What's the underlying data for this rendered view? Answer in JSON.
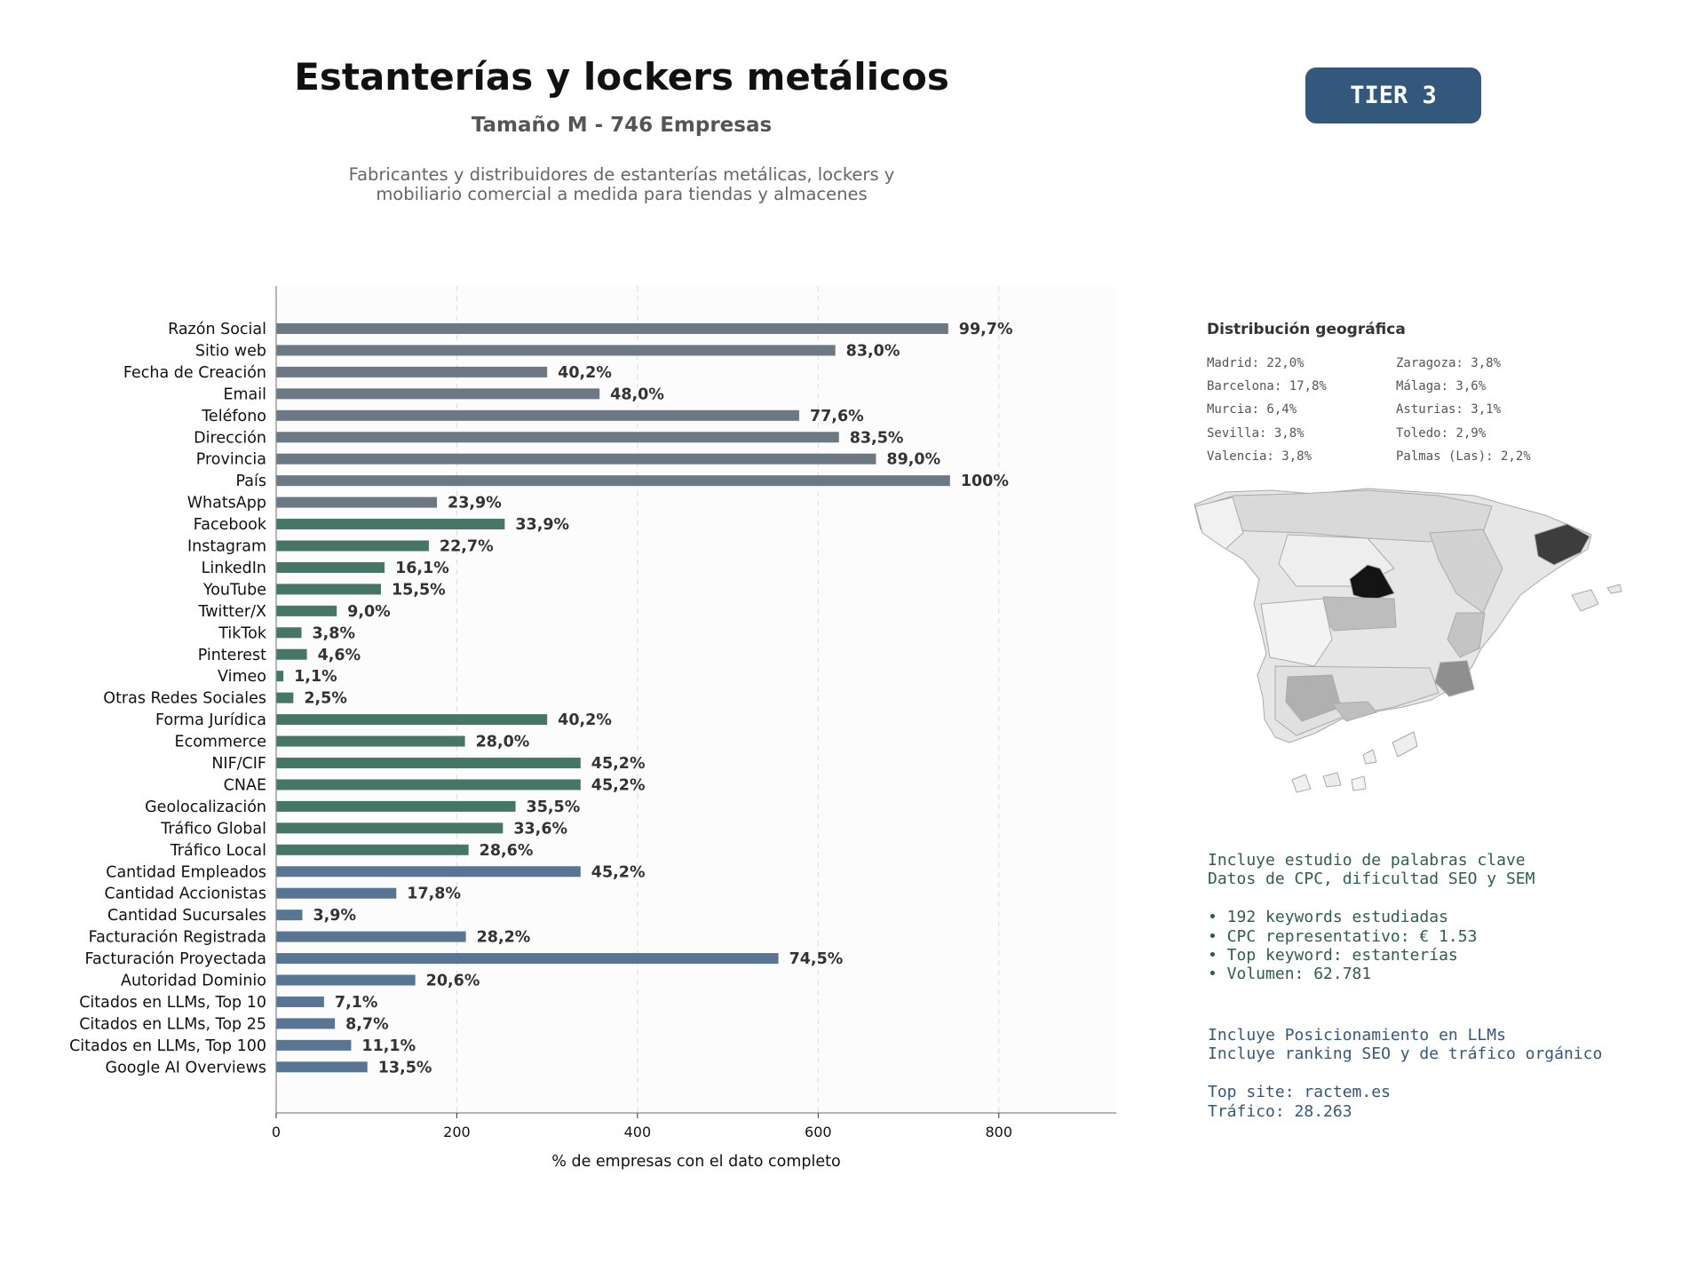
{
  "header": {
    "title": "Estanterías y lockers metálicos",
    "subtitle": "Tamaño M - 746 Empresas",
    "description_line1": "Fabricantes y distribuidores de estanterías metálicas, lockers y",
    "description_line2": "mobiliario comercial a medida para tiendas y almacenes",
    "tier": "TIER 3"
  },
  "colors": {
    "gray_group": "#6c7883",
    "green_group": "#467664",
    "blue_group": "#587693",
    "tier_bg": "#34587c"
  },
  "chart_data": {
    "type": "bar",
    "orientation": "horizontal",
    "xlabel": "% de empresas con el dato completo",
    "xlim": [
      0,
      930
    ],
    "xticks": [
      0,
      200,
      400,
      600,
      800
    ],
    "grid": "vertical dashed",
    "categories": [
      "Razón Social",
      "Sitio web",
      "Fecha de Creación",
      "Email",
      "Teléfono",
      "Dirección",
      "Provincia",
      "País",
      "WhatsApp",
      "Facebook",
      "Instagram",
      "LinkedIn",
      "YouTube",
      "Twitter/X",
      "TikTok",
      "Pinterest",
      "Vimeo",
      "Otras Redes Sociales",
      "Forma Jurídica",
      "Ecommerce",
      "NIF/CIF",
      "CNAE",
      "Geolocalización",
      "Tráfico Global",
      "Tráfico Local",
      "Cantidad Empleados",
      "Cantidad Accionistas",
      "Cantidad Sucursales",
      "Facturación Registrada",
      "Facturación Proyectada",
      "Autoridad Dominio",
      "Citados en LLMs, Top 10",
      "Citados en LLMs, Top 25",
      "Citados en LLMs, Top 100",
      "Google AI Overviews"
    ],
    "values": [
      744,
      619,
      300,
      358,
      579,
      623,
      664,
      746,
      178,
      253,
      169,
      120,
      116,
      67,
      28,
      34,
      8,
      19,
      300,
      209,
      337,
      337,
      265,
      251,
      213,
      337,
      133,
      29,
      210,
      556,
      154,
      53,
      65,
      83,
      101
    ],
    "labels": [
      "99,7%",
      "83,0%",
      "40,2%",
      "48,0%",
      "77,6%",
      "83,5%",
      "89,0%",
      "100%",
      "23,9%",
      "33,9%",
      "22,7%",
      "16,1%",
      "15,5%",
      "9,0%",
      "3,8%",
      "4,6%",
      "1,1%",
      "2,5%",
      "40,2%",
      "28,0%",
      "45,2%",
      "45,2%",
      "35,5%",
      "33,6%",
      "28,6%",
      "45,2%",
      "17,8%",
      "3,9%",
      "28,2%",
      "74,5%",
      "20,6%",
      "7,1%",
      "8,7%",
      "11,1%",
      "13,5%"
    ],
    "groups": [
      "gray",
      "gray",
      "gray",
      "gray",
      "gray",
      "gray",
      "gray",
      "gray",
      "gray",
      "green",
      "green",
      "green",
      "green",
      "green",
      "green",
      "green",
      "green",
      "green",
      "green",
      "green",
      "green",
      "green",
      "green",
      "green",
      "green",
      "blue",
      "blue",
      "blue",
      "blue",
      "blue",
      "blue",
      "blue",
      "blue",
      "blue",
      "blue"
    ]
  },
  "geo": {
    "title": "Distribución geográfica",
    "col1": [
      "Madrid: 22,0%",
      "Barcelona: 17,8%",
      "Murcia: 6,4%",
      "Sevilla: 3,8%",
      "Valencia: 3,8%"
    ],
    "col2": [
      "Zaragoza: 3,8%",
      "Málaga: 3,6%",
      "Asturias: 3,1%",
      "Toledo: 2,9%",
      "Palmas (Las): 2,2%"
    ]
  },
  "keywords": {
    "line1": "Incluye estudio de palabras clave",
    "line2": "Datos de CPC, dificultad SEO y SEM",
    "bullet1": "• 192 keywords estudiadas",
    "bullet2": "• CPC representativo: € 1.53",
    "bullet3": "• Top keyword: estanterías",
    "bullet4": "• Volumen: 62.781"
  },
  "llm": {
    "line1": "Incluye Posicionamiento en LLMs",
    "line2": "Incluye ranking SEO y de tráfico orgánico",
    "line3": "Top site: ractem.es",
    "line4": "Tráfico: 28.263"
  }
}
